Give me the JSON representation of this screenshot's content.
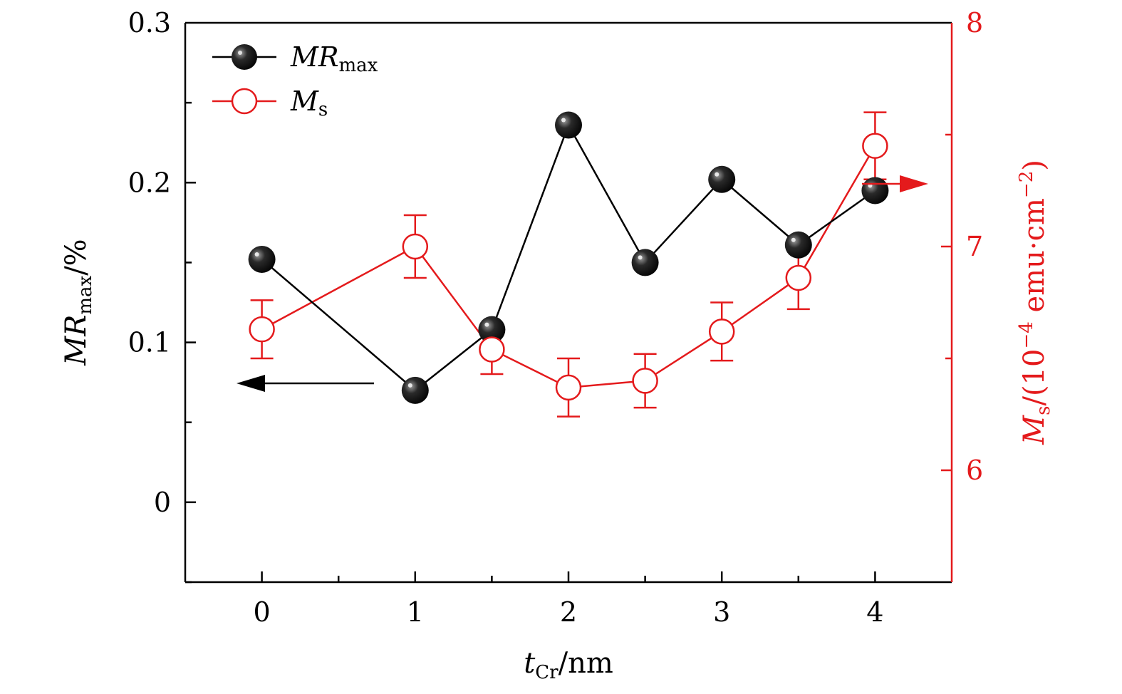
{
  "chart_data": {
    "type": "line",
    "title": "",
    "xlabel": {
      "var": "t",
      "sub": "Cr",
      "unit": "/nm"
    },
    "ylabel_left": {
      "var": "MR",
      "sub": "max",
      "unit": "/%"
    },
    "ylabel_right": {
      "var": "M",
      "sub": "s",
      "unit_pre": "/(10",
      "exp": "−4",
      "unit_mid": " emu·cm",
      "exp2": "−2",
      "unit_post": ")"
    },
    "xlim": [
      -0.5,
      4.5
    ],
    "ylim_left": [
      -0.05,
      0.3
    ],
    "ylim_right": [
      5.5,
      8
    ],
    "x_ticks": [
      0,
      1,
      2,
      3,
      4
    ],
    "x_tick_labels": [
      "0",
      "1",
      "2",
      "3",
      "4"
    ],
    "y_left_ticks": [
      0,
      0.1,
      0.2,
      0.3
    ],
    "y_left_tick_labels": [
      "0",
      "0.1",
      "0.2",
      "0.3"
    ],
    "y_right_ticks": [
      6,
      7,
      8
    ],
    "y_right_tick_labels": [
      "6",
      "7",
      "8"
    ],
    "series": [
      {
        "name": "MR_max",
        "legend": {
          "var": "MR",
          "sub": "max"
        },
        "axis": "left",
        "color": "#000000",
        "marker": "filled-sphere",
        "x": [
          0,
          1,
          1.5,
          2,
          2.5,
          3,
          3.5,
          4
        ],
        "y": [
          0.152,
          0.07,
          0.108,
          0.236,
          0.15,
          0.202,
          0.161,
          0.195
        ]
      },
      {
        "name": "M_s",
        "legend": {
          "var": "M",
          "sub": "s"
        },
        "axis": "right",
        "color": "#e41a1c",
        "marker": "open-circle",
        "x": [
          0,
          1,
          1.5,
          2,
          2.5,
          3,
          3.5,
          4
        ],
        "y": [
          6.63,
          7.0,
          6.54,
          6.37,
          6.4,
          6.62,
          6.86,
          7.45
        ],
        "err": [
          0.13,
          0.14,
          0.11,
          0.13,
          0.12,
          0.13,
          0.14,
          0.15
        ]
      }
    ],
    "legend_position": "top-left",
    "arrows": [
      {
        "points_to": "left-axis",
        "series": "MR_max"
      },
      {
        "points_to": "right-axis",
        "series": "M_s"
      }
    ]
  }
}
